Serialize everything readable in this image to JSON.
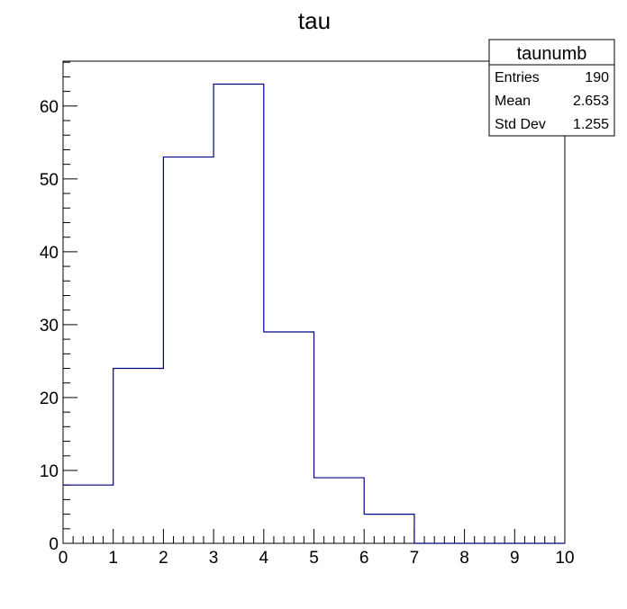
{
  "chart_data": {
    "type": "bar",
    "histogram": true,
    "title": "tau",
    "xlabel": "",
    "ylabel": "",
    "bin_edges": [
      0,
      1,
      2,
      3,
      4,
      5,
      6,
      7,
      8,
      9,
      10
    ],
    "values": [
      8,
      24,
      53,
      63,
      29,
      9,
      4,
      0,
      0,
      0
    ],
    "xlim": [
      0,
      10
    ],
    "ylim": [
      0,
      66.15
    ],
    "x_ticks": [
      "0",
      "1",
      "2",
      "3",
      "4",
      "5",
      "6",
      "7",
      "8",
      "9",
      "10"
    ],
    "y_ticks": [
      "0",
      "10",
      "20",
      "30",
      "40",
      "50",
      "60"
    ],
    "x_tick_values": [
      0,
      1,
      2,
      3,
      4,
      5,
      6,
      7,
      8,
      9,
      10
    ],
    "y_tick_values": [
      0,
      10,
      20,
      30,
      40,
      50,
      60
    ],
    "line_color": "#000080",
    "grid": false,
    "stats_box": {
      "title": "taunumb",
      "position": "top-right",
      "rows": [
        {
          "label": "Entries",
          "value": "190"
        },
        {
          "label": "Mean",
          "value": "2.653"
        },
        {
          "label": "Std Dev",
          "value": "1.255"
        }
      ]
    }
  }
}
